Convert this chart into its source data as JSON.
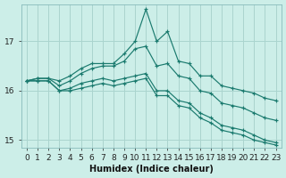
{
  "xlabel": "Humidex (Indice chaleur)",
  "bg_color": "#cceee8",
  "grid_color": "#aad4ce",
  "line_color": "#1a7a6e",
  "xlim": [
    -0.5,
    23.5
  ],
  "ylim": [
    14.85,
    17.75
  ],
  "yticks": [
    15,
    16,
    17
  ],
  "xticks": [
    0,
    1,
    2,
    3,
    4,
    5,
    6,
    7,
    8,
    9,
    10,
    11,
    12,
    13,
    14,
    15,
    16,
    17,
    18,
    19,
    20,
    21,
    22,
    23
  ],
  "series": [
    [
      16.2,
      16.25,
      16.25,
      16.2,
      16.3,
      16.45,
      16.55,
      16.55,
      16.55,
      16.75,
      17.0,
      17.65,
      17.0,
      17.2,
      16.6,
      16.55,
      16.3,
      16.3,
      16.1,
      16.05,
      16.0,
      15.95,
      15.85,
      15.8
    ],
    [
      16.2,
      16.25,
      16.25,
      16.1,
      16.2,
      16.35,
      16.45,
      16.5,
      16.5,
      16.6,
      16.85,
      16.9,
      16.5,
      16.55,
      16.3,
      16.25,
      16.0,
      15.95,
      15.75,
      15.7,
      15.65,
      15.55,
      15.45,
      15.4
    ],
    [
      16.2,
      16.2,
      16.2,
      16.0,
      16.05,
      16.15,
      16.2,
      16.25,
      16.2,
      16.25,
      16.3,
      16.35,
      16.0,
      16.0,
      15.8,
      15.75,
      15.55,
      15.45,
      15.3,
      15.25,
      15.2,
      15.1,
      15.0,
      14.95
    ],
    [
      16.2,
      16.2,
      16.2,
      16.0,
      16.0,
      16.05,
      16.1,
      16.15,
      16.1,
      16.15,
      16.2,
      16.25,
      15.9,
      15.9,
      15.7,
      15.65,
      15.45,
      15.35,
      15.2,
      15.15,
      15.1,
      15.0,
      14.95,
      14.9
    ]
  ]
}
